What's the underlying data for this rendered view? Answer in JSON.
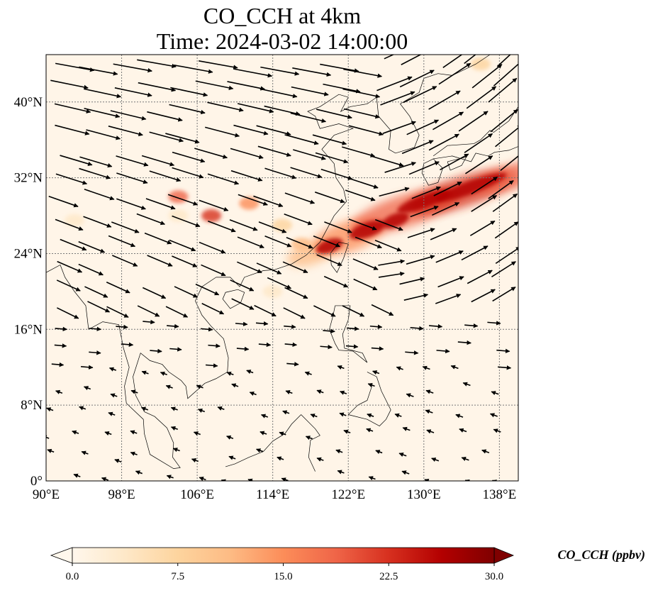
{
  "title": {
    "line1": "CO_CCH at 4km",
    "line2": "Time: 2024-03-02 14:00:00"
  },
  "map": {
    "lon_range": [
      90,
      140
    ],
    "lat_range": [
      0,
      45
    ],
    "lon_ticks": [
      {
        "v": 90,
        "label": "90°E"
      },
      {
        "v": 98,
        "label": "98°E"
      },
      {
        "v": 106,
        "label": "106°E"
      },
      {
        "v": 114,
        "label": "114°E"
      },
      {
        "v": 122,
        "label": "122°E"
      },
      {
        "v": 130,
        "label": "130°E"
      },
      {
        "v": 138,
        "label": "138°E"
      }
    ],
    "lat_ticks": [
      {
        "v": 0,
        "label": "0°"
      },
      {
        "v": 8,
        "label": "8°N"
      },
      {
        "v": 16,
        "label": "16°N"
      },
      {
        "v": 24,
        "label": "24°N"
      },
      {
        "v": 32,
        "label": "32°N"
      },
      {
        "v": 40,
        "label": "40°N"
      }
    ],
    "gridlines": true
  },
  "colorbar": {
    "label": "CO_CCH (ppbv)",
    "min": 0,
    "max": 30,
    "ticks": [
      "0.0",
      "7.5",
      "15.0",
      "22.5",
      "30.0"
    ],
    "colormap": [
      "#fff7ec",
      "#fee8c8",
      "#fdd49e",
      "#fdbb84",
      "#fc8d59",
      "#ef6548",
      "#d7301f",
      "#b30000",
      "#7f0000"
    ],
    "extend": "both"
  }
}
